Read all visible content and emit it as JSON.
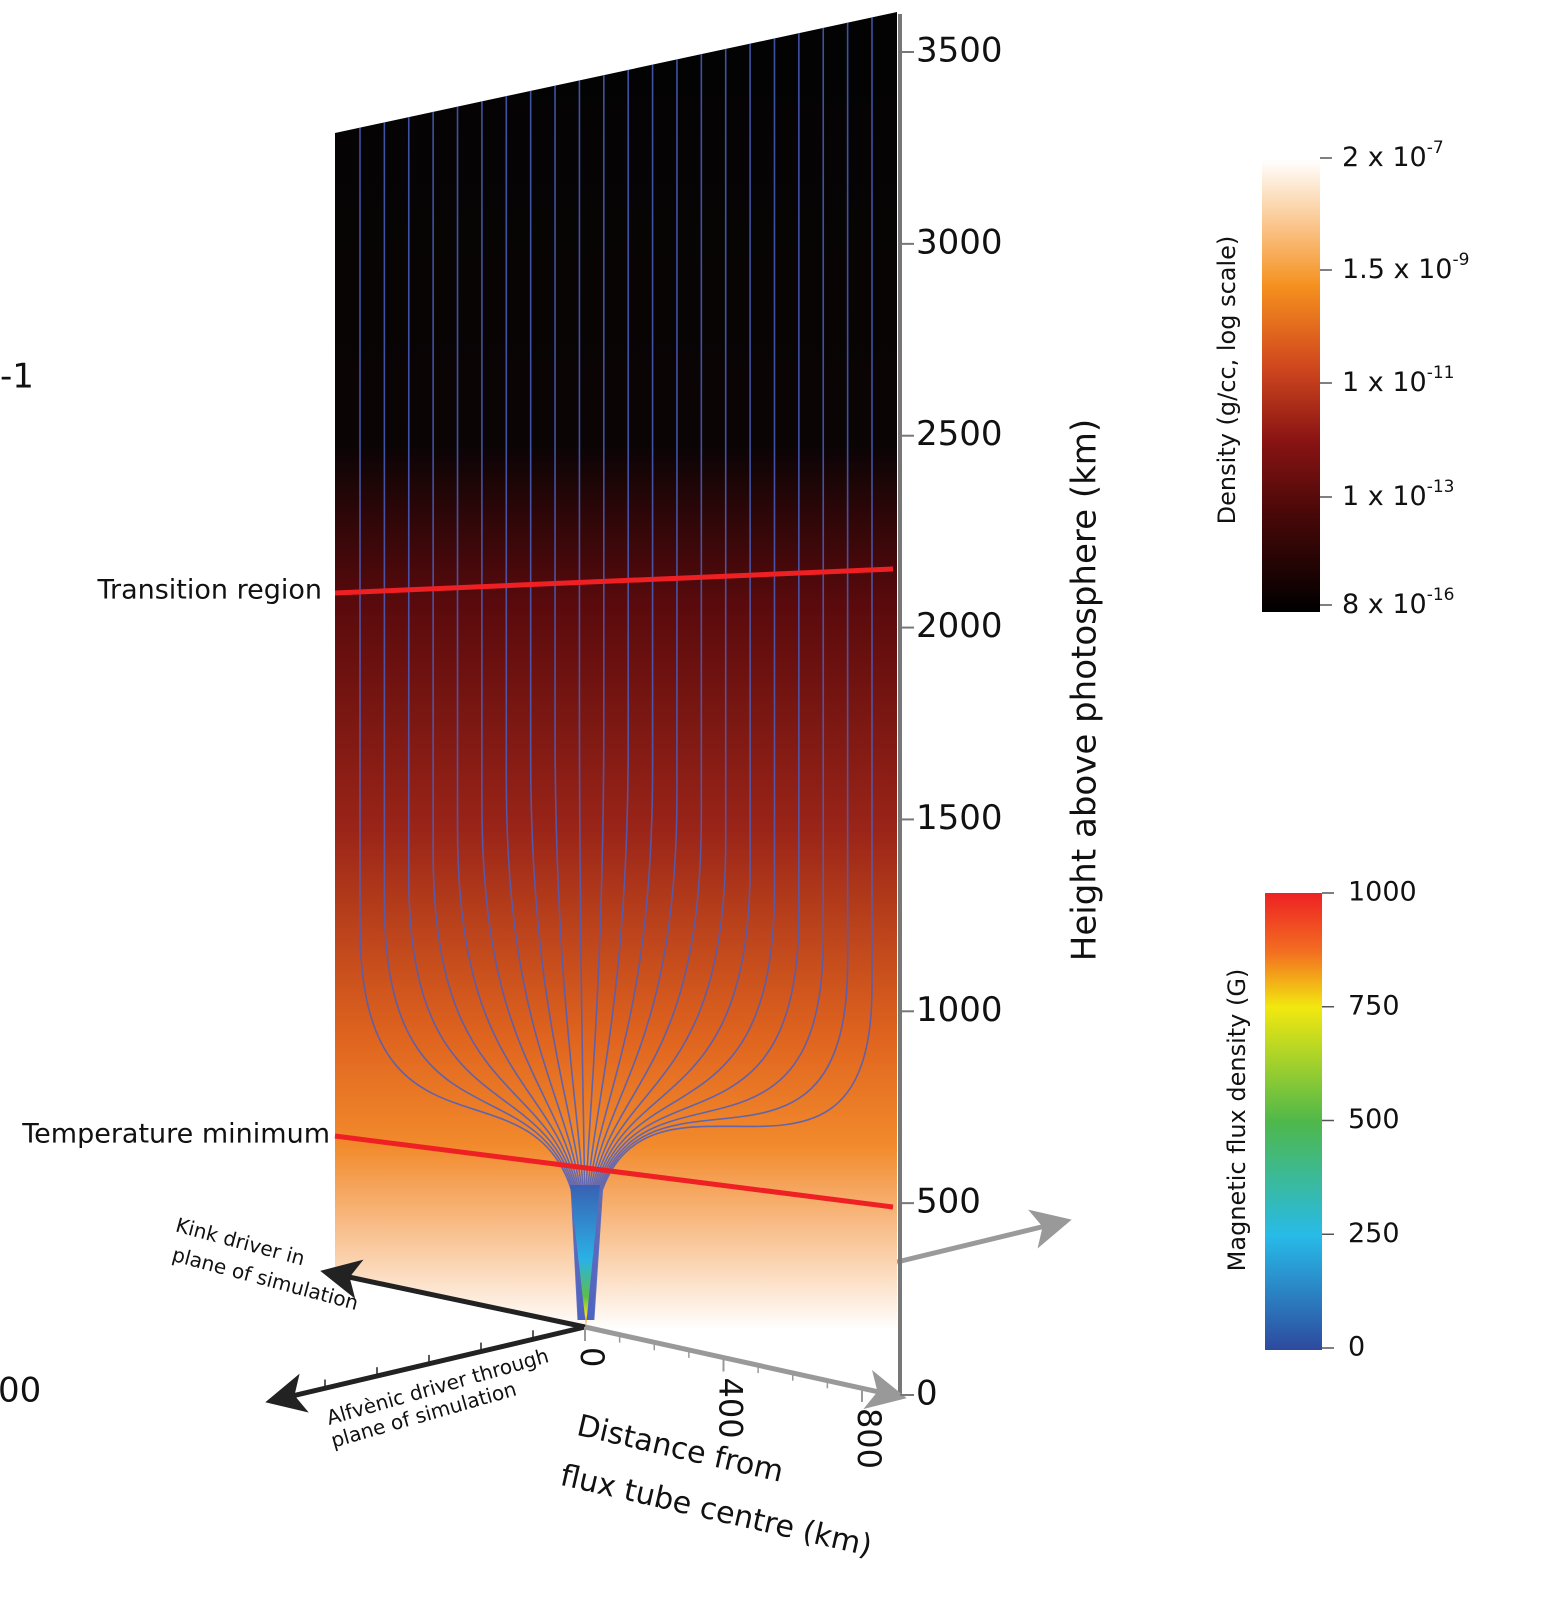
{
  "fragments": [
    "-1",
    "00"
  ],
  "height_axis": {
    "label": "Height above photosphere (km)",
    "ticks": [
      3500,
      3000,
      2500,
      2000,
      1500,
      1000,
      500,
      0
    ]
  },
  "distance_axis": {
    "label_lines": [
      "Distance from",
      "flux tube centre (km)"
    ],
    "ticks": [
      0,
      400,
      800
    ]
  },
  "annotations": {
    "transition_region": "Transition region",
    "temperature_minimum": "Temperature minimum",
    "kink_driver": [
      "Kink driver in",
      "plane of simulation"
    ],
    "alfvenic_driver": [
      "Alfvènic driver through",
      "plane of simulation"
    ]
  },
  "density_colorbar": {
    "title": "Density (g/cc, log scale)",
    "ticks": [
      {
        "mantissa": "2 x 10",
        "exponent": "-7"
      },
      {
        "mantissa": "1.5 x 10",
        "exponent": "-9"
      },
      {
        "mantissa": "1 x 10",
        "exponent": "-11"
      },
      {
        "mantissa": "1 x 10",
        "exponent": "-13"
      },
      {
        "mantissa": "8 x 10",
        "exponent": "-16"
      }
    ]
  },
  "flux_colorbar": {
    "title": "Magnetic flux density (G)",
    "ticks": [
      1000,
      750,
      500,
      250,
      0
    ]
  }
}
